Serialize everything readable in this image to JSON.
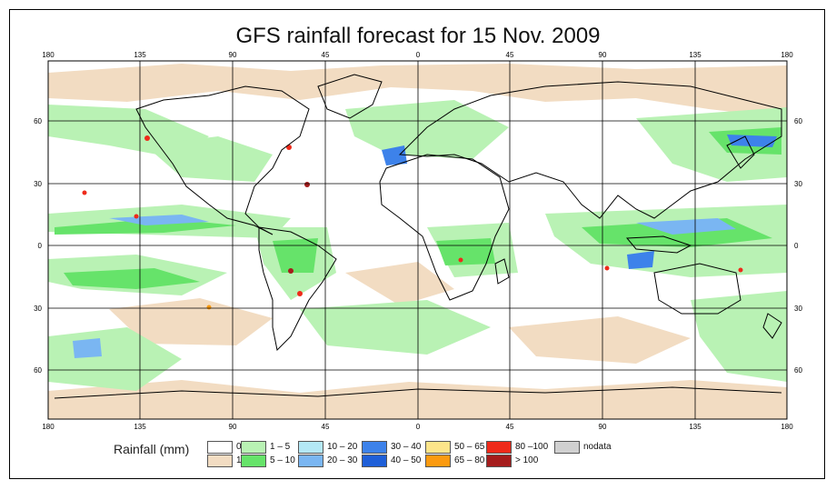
{
  "title": "GFS rainfall forecast for 15 Nov. 2009",
  "lon_ticks": [
    "180",
    "135",
    "90",
    "45",
    "0",
    "45",
    "90",
    "135",
    "180"
  ],
  "lat_ticks": [
    "60",
    "30",
    "0",
    "30",
    "60"
  ],
  "legend": {
    "title": "Rainfall (mm)",
    "items": [
      {
        "label": "0",
        "color": "#ffffff"
      },
      {
        "label": "1",
        "color": "#f2dcc2"
      },
      {
        "label": "1 – 5",
        "color": "#b9f2b4"
      },
      {
        "label": "5 – 10",
        "color": "#66e36a"
      },
      {
        "label": "10 – 20",
        "color": "#b4e8f6"
      },
      {
        "label": "20 – 30",
        "color": "#7ab6f2"
      },
      {
        "label": "30 – 40",
        "color": "#3d82ea"
      },
      {
        "label": "40 – 50",
        "color": "#1f5fd8"
      },
      {
        "label": "50 – 65",
        "color": "#fde58a"
      },
      {
        "label": "65 – 80",
        "color": "#fb9a10"
      },
      {
        "label": "80 –100",
        "color": "#ee2a1a"
      },
      {
        "label": "> 100",
        "color": "#a51c1c"
      },
      {
        "label": "nodata",
        "color": "#d0d0d0"
      }
    ]
  }
}
